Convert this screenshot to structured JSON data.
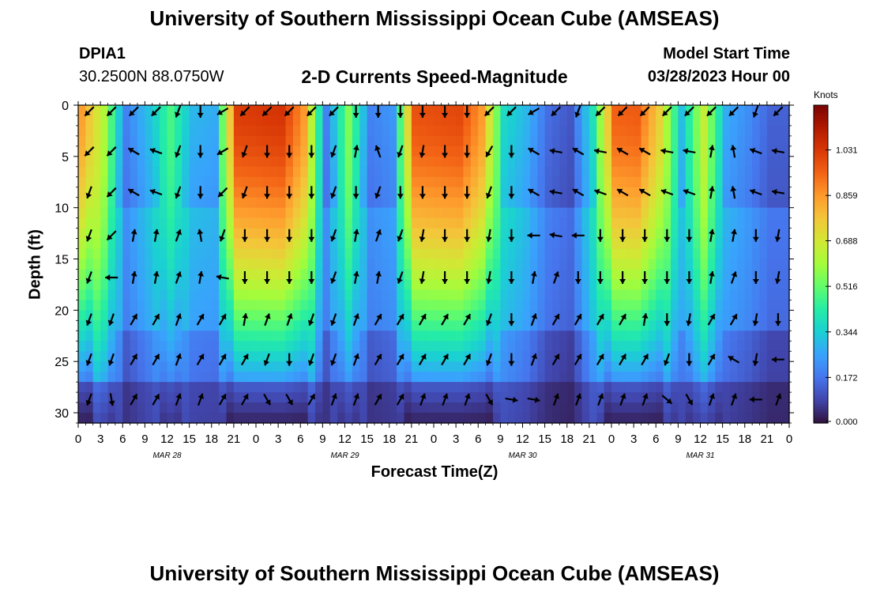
{
  "header": {
    "title": "University of Southern Mississippi Ocean Cube (AMSEAS)",
    "station_id": "DPIA1",
    "station_coords": "30.2500N  88.0750W",
    "chart_title": "2-D Currents Speed-Magnitude",
    "model_start_label": "Model Start Time",
    "model_start_value": "03/28/2023 Hour 00"
  },
  "footer": {
    "title": "University of Southern Mississippi Ocean Cube (AMSEAS)"
  },
  "colors": {
    "scale": [
      "#30123b",
      "#4145ab",
      "#4675ed",
      "#39a2fc",
      "#1bcfd4",
      "#24eca6",
      "#61fc6c",
      "#a4fc3b",
      "#d1e834",
      "#f3c63a",
      "#fe9b2d",
      "#f36315",
      "#d93806",
      "#b11901",
      "#7a0402"
    ]
  },
  "chart_data": {
    "type": "heatmap",
    "title": "2-D Currents Speed-Magnitude",
    "xlabel": "Forecast Time(Z)",
    "ylabel": "Depth (ft)",
    "xlim": [
      0,
      96
    ],
    "ylim": [
      31,
      0
    ],
    "x_ticks": [
      0,
      3,
      6,
      9,
      12,
      15,
      18,
      21,
      24,
      27,
      30,
      33,
      36,
      39,
      42,
      45,
      48,
      51,
      54,
      57,
      60,
      63,
      66,
      69,
      72,
      75,
      78,
      81,
      84,
      87,
      90,
      93,
      96
    ],
    "x_tick_labels": [
      "0",
      "3",
      "6",
      "9",
      "12",
      "15",
      "18",
      "21",
      "0",
      "3",
      "6",
      "9",
      "12",
      "15",
      "18",
      "21",
      "0",
      "3",
      "6",
      "9",
      "12",
      "15",
      "18",
      "21",
      "0",
      "3",
      "6",
      "9",
      "12",
      "15",
      "18",
      "21",
      "0"
    ],
    "y_ticks": [
      0,
      5,
      10,
      15,
      20,
      25,
      30
    ],
    "y_tick_labels": [
      "0",
      "5",
      "10",
      "15",
      "20",
      "25",
      "30"
    ],
    "day_labels": [
      {
        "x": 12,
        "label": "MAR 28"
      },
      {
        "x": 36,
        "label": "MAR 29"
      },
      {
        "x": 60,
        "label": "MAR 30"
      },
      {
        "x": 84,
        "label": "MAR 31"
      }
    ],
    "colorbar": {
      "label": "Knots",
      "min": 0.0,
      "max": 1.2,
      "ticks": [
        0.0,
        0.172,
        0.344,
        0.516,
        0.688,
        0.859,
        1.031
      ],
      "tick_labels": [
        "0.000",
        "0.172",
        "0.344",
        "0.516",
        "0.688",
        "0.859",
        "1.031"
      ]
    },
    "arrow_times": [
      1.5,
      4.5,
      7.5,
      10.5,
      13.5,
      16.5,
      19.5,
      22.5,
      25.5,
      28.5,
      31.5,
      34.5,
      37.5,
      40.5,
      43.5,
      46.5,
      49.5,
      52.5,
      55.5,
      58.5,
      61.5,
      64.5,
      67.5,
      70.5,
      73.5,
      76.5,
      79.5,
      82.5,
      85.5,
      88.5,
      91.5,
      94.5
    ],
    "arrow_depths": [
      0.3,
      4.2,
      8.2,
      12.4,
      16.5,
      20.6,
      24.5,
      28.4
    ],
    "arrow_directions_deg": [
      [
        225,
        225,
        225,
        225,
        200,
        180,
        240,
        225,
        225,
        225,
        225,
        225,
        180,
        180,
        180,
        180,
        180,
        180,
        225,
        225,
        240,
        225,
        200,
        225,
        225,
        225,
        225,
        225,
        225,
        225,
        200,
        225
      ],
      [
        225,
        225,
        300,
        290,
        200,
        180,
        240,
        200,
        180,
        180,
        180,
        200,
        10,
        340,
        200,
        190,
        180,
        180,
        210,
        180,
        300,
        280,
        300,
        280,
        300,
        300,
        280,
        280,
        10,
        350,
        290,
        280
      ],
      [
        200,
        225,
        300,
        290,
        200,
        180,
        225,
        200,
        180,
        180,
        180,
        200,
        180,
        200,
        180,
        180,
        180,
        180,
        200,
        180,
        300,
        280,
        300,
        290,
        300,
        300,
        290,
        290,
        10,
        350,
        290,
        280
      ],
      [
        200,
        225,
        10,
        10,
        20,
        350,
        200,
        180,
        180,
        180,
        180,
        200,
        10,
        20,
        200,
        190,
        180,
        180,
        190,
        180,
        270,
        280,
        270,
        180,
        180,
        180,
        180,
        180,
        10,
        10,
        180,
        190
      ],
      [
        200,
        270,
        10,
        10,
        20,
        10,
        280,
        180,
        180,
        180,
        180,
        200,
        10,
        10,
        200,
        190,
        180,
        180,
        190,
        180,
        10,
        20,
        180,
        180,
        180,
        180,
        180,
        180,
        10,
        20,
        180,
        190
      ],
      [
        200,
        200,
        30,
        30,
        20,
        30,
        30,
        10,
        20,
        20,
        200,
        200,
        20,
        30,
        30,
        30,
        30,
        30,
        200,
        180,
        20,
        30,
        30,
        30,
        30,
        10,
        180,
        190,
        30,
        30,
        190,
        180
      ],
      [
        200,
        200,
        30,
        30,
        20,
        30,
        30,
        30,
        200,
        180,
        200,
        200,
        20,
        30,
        30,
        30,
        30,
        30,
        200,
        180,
        20,
        30,
        30,
        30,
        30,
        30,
        200,
        180,
        30,
        300,
        190,
        270
      ],
      [
        200,
        170,
        30,
        30,
        20,
        20,
        30,
        30,
        150,
        150,
        30,
        20,
        20,
        30,
        30,
        20,
        20,
        20,
        150,
        100,
        100,
        20,
        20,
        20,
        20,
        20,
        130,
        150,
        20,
        20,
        270,
        20
      ]
    ],
    "speed_profile_knots": [
      0.85,
      0.62,
      0.2,
      0.32,
      0.48,
      0.3,
      0.28,
      1.02,
      1.03,
      1.04,
      0.86,
      0.2,
      0.55,
      0.2,
      0.24,
      0.98,
      0.99,
      1.0,
      0.86,
      0.38,
      0.3,
      0.16,
      0.12,
      0.4,
      0.95,
      0.96,
      0.75,
      0.32,
      0.66,
      0.28,
      0.22,
      0.14
    ]
  }
}
